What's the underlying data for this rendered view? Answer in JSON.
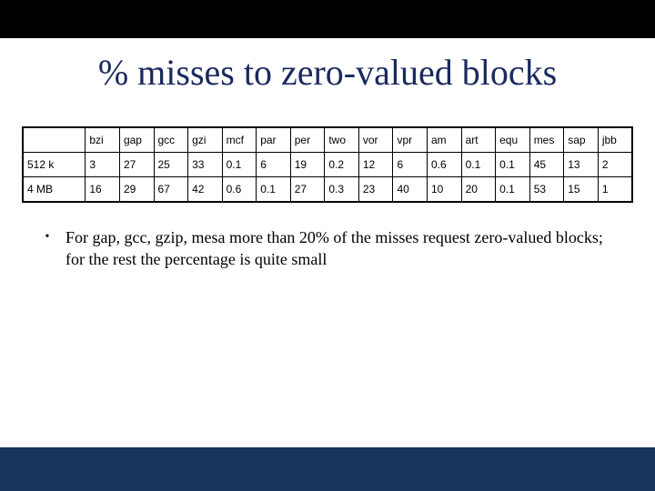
{
  "title": "% misses to zero-valued blocks",
  "table": {
    "columns": [
      "bzi",
      "gap",
      "gcc",
      "gzi",
      "mcf",
      "par",
      "per",
      "two",
      "vor",
      "vpr",
      "am",
      "art",
      "equ",
      "mes",
      "sap",
      "jbb"
    ],
    "rows": [
      {
        "label": "512 k",
        "values": [
          "3",
          "27",
          "25",
          "33",
          "0.1",
          "6",
          "19",
          "0.2",
          "12",
          "6",
          "0.6",
          "0.1",
          "0.1",
          "45",
          "13",
          "2"
        ]
      },
      {
        "label": "4 MB",
        "values": [
          "16",
          "29",
          "67",
          "42",
          "0.6",
          "0.1",
          "27",
          "0.3",
          "23",
          "40",
          "10",
          "20",
          "0.1",
          "53",
          "15",
          "1"
        ]
      }
    ],
    "border_color": "#000000",
    "header_font": "Arial",
    "cell_fontsize": 12
  },
  "bullet": "For gap, gcc, gzip, mesa more than  20% of the misses request zero-valued blocks; for the rest the percentage is quite small",
  "colors": {
    "top_bar": "#000000",
    "bottom_bar": "#17365d",
    "title_text": "#1a2a5e",
    "background": "#ffffff"
  }
}
